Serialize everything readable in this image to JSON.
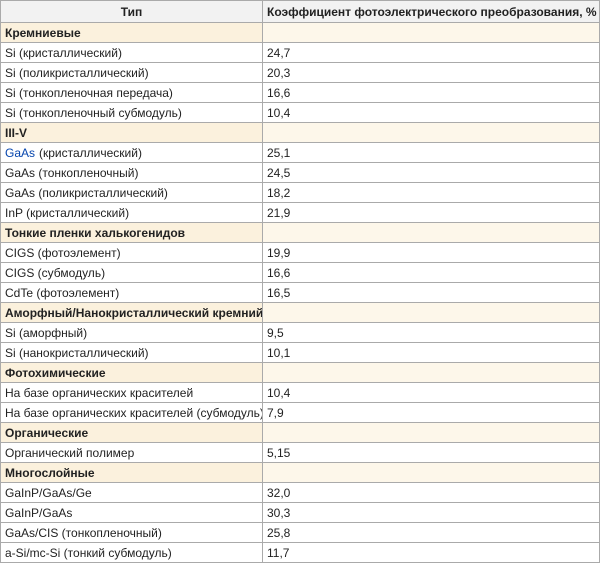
{
  "table": {
    "header": [
      "Тип",
      "Коэффициент фотоэлектрического преобразования, %"
    ],
    "groups": [
      {
        "title": "Кремниевые",
        "rows": [
          {
            "type": "Si (кристаллический)",
            "value": "24,7"
          },
          {
            "type": "Si (поликристаллический)",
            "value": "20,3"
          },
          {
            "type": "Si (тонкопленочная передача)",
            "value": "16,6"
          },
          {
            "type": "Si (тонкопленочный субмодуль)",
            "value": "10,4"
          }
        ]
      },
      {
        "title": "III-V",
        "rows": [
          {
            "link": "GaAs",
            "type": "(кристаллический)",
            "value": "25,1"
          },
          {
            "type": "GaAs (тонкопленочный)",
            "value": "24,5"
          },
          {
            "type": "GaAs (поликристаллический)",
            "value": "18,2"
          },
          {
            "type": "InP (кристаллический)",
            "value": "21,9"
          }
        ]
      },
      {
        "title": "Тонкие пленки халькогенидов",
        "rows": [
          {
            "type": "CIGS (фотоэлемент)",
            "value": "19,9"
          },
          {
            "type": "CIGS (субмодуль)",
            "value": "16,6"
          },
          {
            "type": "CdTe (фотоэлемент)",
            "value": "16,5"
          }
        ]
      },
      {
        "title": "Аморфный/Нанокристаллический кремний",
        "rows": [
          {
            "type": "Si (аморфный)",
            "value": "9,5"
          },
          {
            "type": "Si (нанокристаллический)",
            "value": "10,1"
          }
        ]
      },
      {
        "title": "Фотохимические",
        "rows": [
          {
            "type": "На базе органических красителей",
            "value": "10,4"
          },
          {
            "type": "На базе органических красителей (субмодуль)",
            "value": "7,9"
          }
        ]
      },
      {
        "title": "Органические",
        "rows": [
          {
            "type": "Органический полимер",
            "value": "5,15"
          }
        ]
      },
      {
        "title": "Многослойные",
        "rows": [
          {
            "type": "GaInP/GaAs/Ge",
            "value": "32,0"
          },
          {
            "type": "GaInP/GaAs",
            "value": "30,3"
          },
          {
            "type": "GaAs/CIS (тонкопленочный)",
            "value": "25,8"
          },
          {
            "type": "a-Si/mc-Si (тонкий субмодуль)",
            "value": "11,7"
          }
        ]
      }
    ]
  }
}
